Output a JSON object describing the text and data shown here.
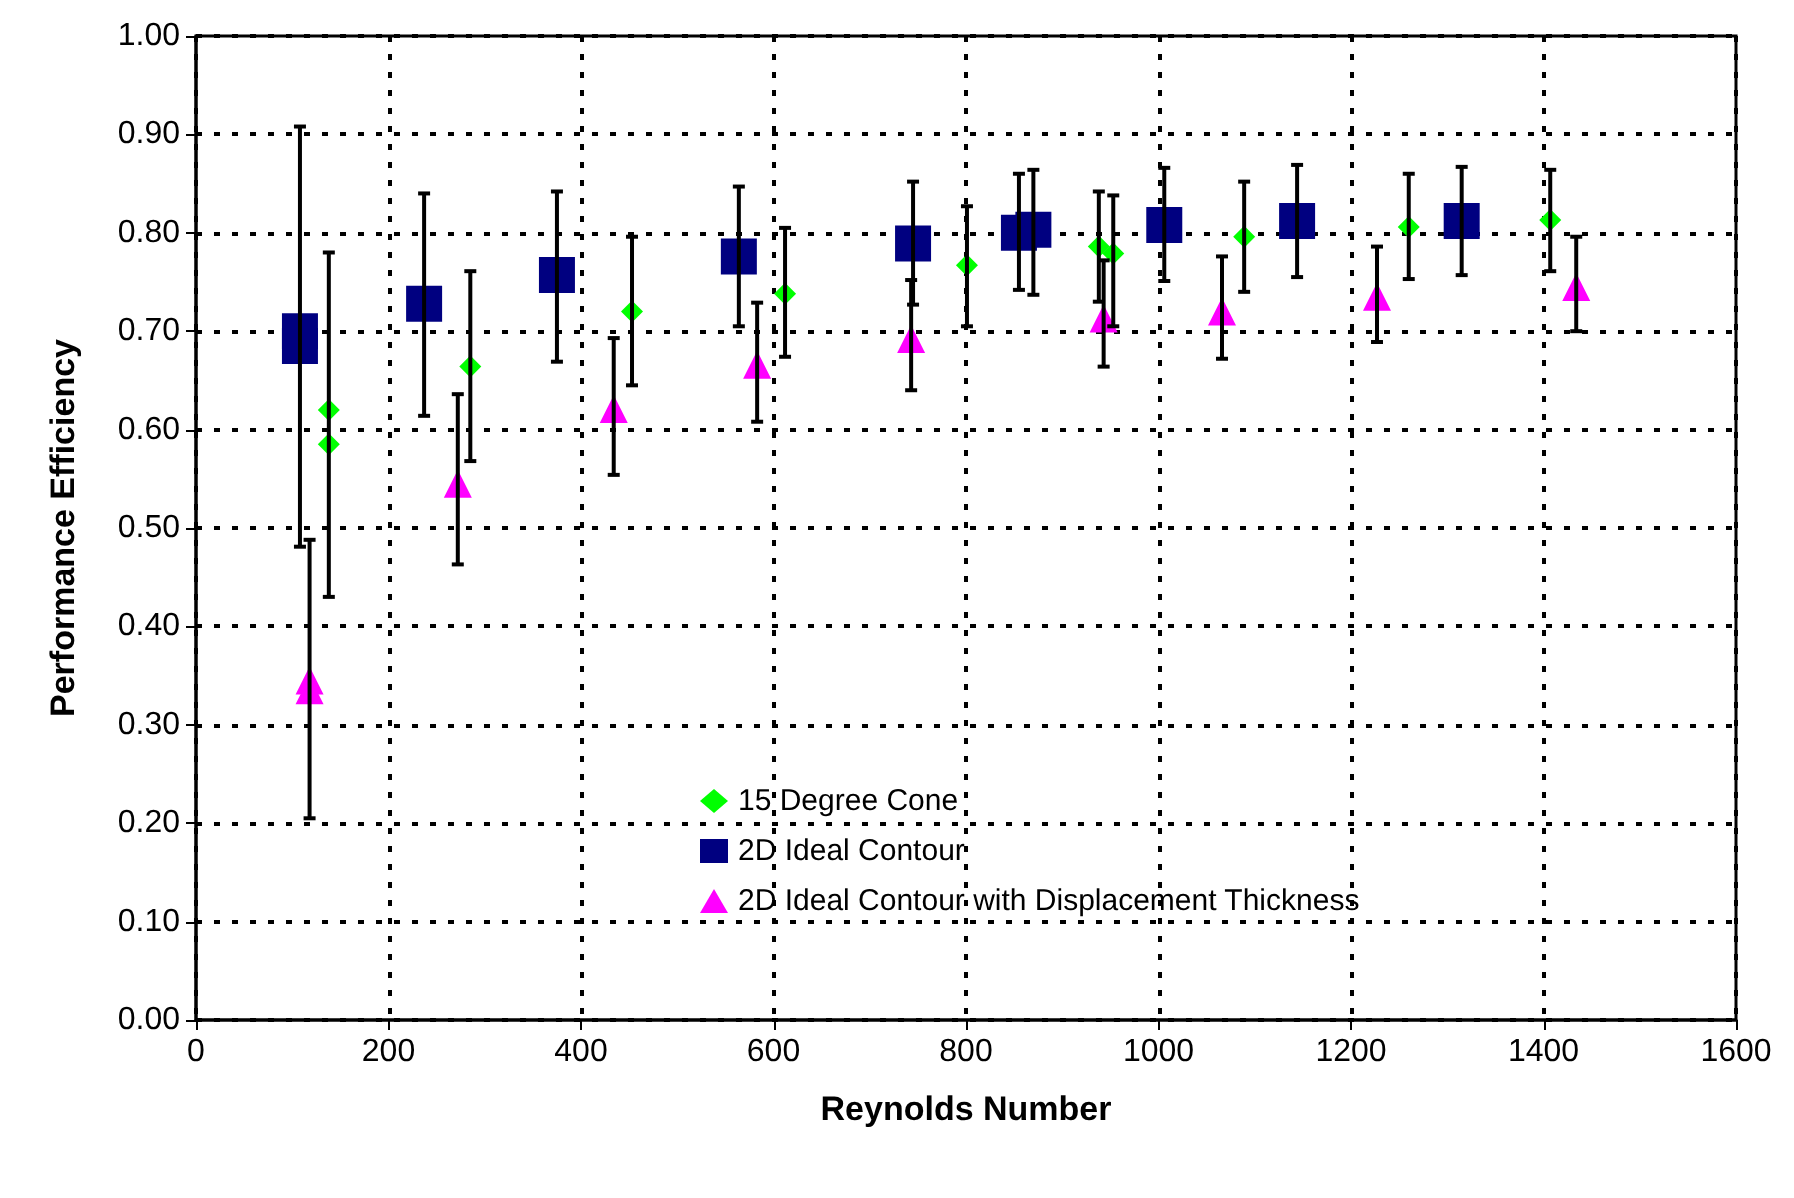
{
  "chart_data": {
    "type": "scatter",
    "xlabel": "Reynolds Number",
    "ylabel": "Performance Efficiency",
    "xlim": [
      0,
      1600
    ],
    "xticks": [
      0,
      200,
      400,
      600,
      800,
      1000,
      1200,
      1400,
      1600
    ],
    "ylim": [
      0,
      1
    ],
    "yticks": [
      {
        "value": 0,
        "label": "0.00"
      },
      {
        "value": 0.1,
        "label": "0.10"
      },
      {
        "value": 0.2,
        "label": "0.20"
      },
      {
        "value": 0.3,
        "label": "0.30"
      },
      {
        "value": 0.4,
        "label": "0.40"
      },
      {
        "value": 0.5,
        "label": "0.50"
      },
      {
        "value": 0.6,
        "label": "0.60"
      },
      {
        "value": 0.7,
        "label": "0.70"
      },
      {
        "value": 0.8,
        "label": "0.80"
      },
      {
        "value": 0.9,
        "label": "0.90"
      },
      {
        "value": 1,
        "label": "1.00"
      }
    ],
    "grid": true,
    "legend": "bottom",
    "series": [
      {
        "name": "15 Degree Cone",
        "color": "#00ff00",
        "marker": "diamond",
        "x": [
          138,
          138,
          285,
          453,
          612,
          801,
          938,
          953,
          1089,
          1260,
          1407
        ],
        "values": [
          0.62,
          0.585,
          0.664,
          0.72,
          0.738,
          0.767,
          0.786,
          0.779,
          0.796,
          0.806,
          0.813
        ],
        "errors": [
          [
            0.43,
            0.78
          ],
          null,
          [
            0.568,
            0.761
          ],
          [
            0.645,
            0.796
          ],
          [
            0.674,
            0.805
          ],
          [
            0.705,
            0.827
          ],
          [
            0.73,
            0.842
          ],
          [
            0.705,
            0.838
          ],
          [
            0.74,
            0.852
          ],
          [
            0.753,
            0.86
          ],
          [
            0.761,
            0.864
          ]
        ]
      },
      {
        "name": "2D Ideal Contour",
        "color": "#000080",
        "marker": "square",
        "x": [
          108,
          108,
          237,
          375,
          564,
          745,
          855,
          870,
          1006,
          1144,
          1315
        ],
        "values": [
          0.7,
          0.685,
          0.728,
          0.757,
          0.776,
          0.789,
          0.8,
          0.803,
          0.808,
          0.812,
          0.812
        ],
        "errors": [
          [
            0.481,
            0.908
          ],
          null,
          [
            0.614,
            0.84
          ],
          [
            0.669,
            0.842
          ],
          [
            0.705,
            0.847
          ],
          [
            0.727,
            0.852
          ],
          [
            0.742,
            0.86
          ],
          [
            0.737,
            0.864
          ],
          [
            0.751,
            0.866
          ],
          [
            0.755,
            0.869
          ],
          [
            0.757,
            0.867
          ]
        ]
      },
      {
        "name": "2D Ideal Contour with Displacement Thickness",
        "color": "#ff00ff",
        "marker": "triangle",
        "x": [
          118,
          118,
          272,
          434,
          583,
          743,
          943,
          1066,
          1227,
          1434
        ],
        "values": [
          0.345,
          0.335,
          0.545,
          0.621,
          0.666,
          0.692,
          0.713,
          0.72,
          0.735,
          0.745
        ],
        "errors": [
          [
            0.205,
            0.488
          ],
          null,
          [
            0.463,
            0.636
          ],
          [
            0.554,
            0.693
          ],
          [
            0.608,
            0.729
          ],
          [
            0.64,
            0.752
          ],
          [
            0.664,
            0.772
          ],
          [
            0.672,
            0.776
          ],
          [
            0.689,
            0.786
          ],
          [
            0.7,
            0.796
          ]
        ]
      }
    ]
  }
}
